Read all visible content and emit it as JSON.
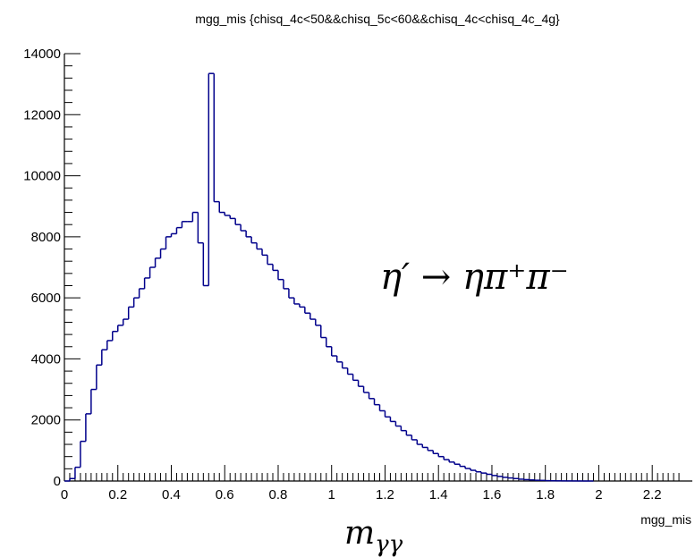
{
  "chart_data": {
    "type": "histogram",
    "title": "mgg_mis {chisq_4c<50&&chisq_5c<60&&chisq_4c<chisq_4c_4g}",
    "xlabel": "mgg_mis",
    "ylabel": "",
    "xlim": [
      0,
      2.35
    ],
    "ylim": [
      0,
      14000
    ],
    "bin_width": 0.02,
    "x_ticks": [
      "0",
      "0.2",
      "0.4",
      "0.6",
      "0.8",
      "1",
      "1.2",
      "1.4",
      "1.6",
      "1.8",
      "2",
      "2.2"
    ],
    "y_ticks": [
      "0",
      "2000",
      "4000",
      "6000",
      "8000",
      "10000",
      "12000",
      "14000"
    ],
    "annotation_main": "η′ → ηπ⁺π⁻",
    "annotation_sub": "m",
    "annotation_sub_index": "γγ",
    "line_color": "#00008b",
    "series": [
      {
        "x": [
          0.0,
          0.02,
          0.04,
          0.06,
          0.08,
          0.1,
          0.12,
          0.14,
          0.16,
          0.18,
          0.2,
          0.22,
          0.24,
          0.26,
          0.28,
          0.3,
          0.32,
          0.34,
          0.36,
          0.38,
          0.4,
          0.42,
          0.44,
          0.46,
          0.48,
          0.5,
          0.52,
          0.54,
          0.56,
          0.58,
          0.6,
          0.62,
          0.64,
          0.66,
          0.68,
          0.7,
          0.72,
          0.74,
          0.76,
          0.78,
          0.8,
          0.82,
          0.84,
          0.86,
          0.88,
          0.9,
          0.92,
          0.94,
          0.96,
          0.98,
          1.0,
          1.02,
          1.04,
          1.06,
          1.08,
          1.1,
          1.12,
          1.14,
          1.16,
          1.18,
          1.2,
          1.22,
          1.24,
          1.26,
          1.28,
          1.3,
          1.32,
          1.34,
          1.36,
          1.38,
          1.4,
          1.42,
          1.44,
          1.46,
          1.48,
          1.5,
          1.52,
          1.54,
          1.56,
          1.58,
          1.6,
          1.62,
          1.64,
          1.66,
          1.68,
          1.7,
          1.72,
          1.74,
          1.76,
          1.78,
          1.8,
          1.82,
          1.84,
          1.86,
          1.88,
          1.9,
          1.92,
          1.94,
          1.96
        ],
        "values": [
          0,
          80,
          450,
          1300,
          2200,
          3000,
          3800,
          4300,
          4600,
          4900,
          5100,
          5300,
          5700,
          6000,
          6300,
          6650,
          7000,
          7300,
          7600,
          8000,
          8100,
          8300,
          8500,
          8500,
          8800,
          7800,
          6400,
          13350,
          9150,
          8800,
          8700,
          8600,
          8400,
          8200,
          8000,
          7800,
          7600,
          7400,
          7100,
          6900,
          6600,
          6300,
          6000,
          5800,
          5700,
          5500,
          5300,
          5100,
          4700,
          4400,
          4100,
          3900,
          3700,
          3500,
          3300,
          3100,
          2900,
          2700,
          2500,
          2300,
          2100,
          1950,
          1800,
          1650,
          1500,
          1350,
          1200,
          1100,
          1000,
          900,
          800,
          700,
          620,
          550,
          480,
          410,
          350,
          300,
          260,
          220,
          180,
          150,
          120,
          100,
          80,
          60,
          45,
          35,
          25,
          20,
          12,
          8,
          6,
          4,
          3,
          2,
          1,
          0,
          0
        ]
      }
    ]
  }
}
